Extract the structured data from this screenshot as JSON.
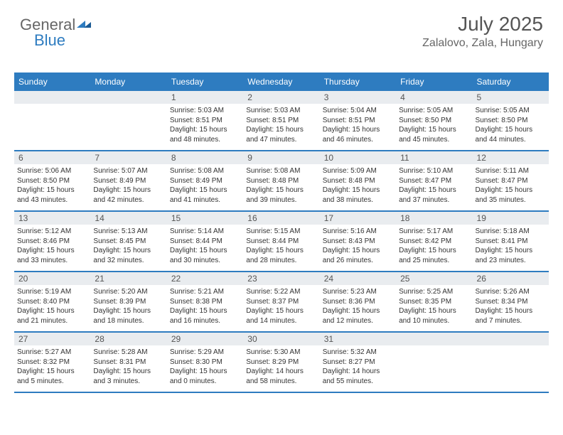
{
  "logo": {
    "text1": "General",
    "text2": "Blue"
  },
  "header": {
    "month": "July 2025",
    "location": "Zalalovo, Zala, Hungary"
  },
  "colors": {
    "accent": "#2e7cc0",
    "daynum_bg": "#e9ecef",
    "text": "#333333",
    "header_text": "#555555"
  },
  "weekdays": [
    "Sunday",
    "Monday",
    "Tuesday",
    "Wednesday",
    "Thursday",
    "Friday",
    "Saturday"
  ],
  "grid_rows": 5,
  "grid_cols": 7,
  "days": [
    null,
    null,
    {
      "n": "1",
      "sunrise": "Sunrise: 5:03 AM",
      "sunset": "Sunset: 8:51 PM",
      "day1": "Daylight: 15 hours",
      "day2": "and 48 minutes."
    },
    {
      "n": "2",
      "sunrise": "Sunrise: 5:03 AM",
      "sunset": "Sunset: 8:51 PM",
      "day1": "Daylight: 15 hours",
      "day2": "and 47 minutes."
    },
    {
      "n": "3",
      "sunrise": "Sunrise: 5:04 AM",
      "sunset": "Sunset: 8:51 PM",
      "day1": "Daylight: 15 hours",
      "day2": "and 46 minutes."
    },
    {
      "n": "4",
      "sunrise": "Sunrise: 5:05 AM",
      "sunset": "Sunset: 8:50 PM",
      "day1": "Daylight: 15 hours",
      "day2": "and 45 minutes."
    },
    {
      "n": "5",
      "sunrise": "Sunrise: 5:05 AM",
      "sunset": "Sunset: 8:50 PM",
      "day1": "Daylight: 15 hours",
      "day2": "and 44 minutes."
    },
    {
      "n": "6",
      "sunrise": "Sunrise: 5:06 AM",
      "sunset": "Sunset: 8:50 PM",
      "day1": "Daylight: 15 hours",
      "day2": "and 43 minutes."
    },
    {
      "n": "7",
      "sunrise": "Sunrise: 5:07 AM",
      "sunset": "Sunset: 8:49 PM",
      "day1": "Daylight: 15 hours",
      "day2": "and 42 minutes."
    },
    {
      "n": "8",
      "sunrise": "Sunrise: 5:08 AM",
      "sunset": "Sunset: 8:49 PM",
      "day1": "Daylight: 15 hours",
      "day2": "and 41 minutes."
    },
    {
      "n": "9",
      "sunrise": "Sunrise: 5:08 AM",
      "sunset": "Sunset: 8:48 PM",
      "day1": "Daylight: 15 hours",
      "day2": "and 39 minutes."
    },
    {
      "n": "10",
      "sunrise": "Sunrise: 5:09 AM",
      "sunset": "Sunset: 8:48 PM",
      "day1": "Daylight: 15 hours",
      "day2": "and 38 minutes."
    },
    {
      "n": "11",
      "sunrise": "Sunrise: 5:10 AM",
      "sunset": "Sunset: 8:47 PM",
      "day1": "Daylight: 15 hours",
      "day2": "and 37 minutes."
    },
    {
      "n": "12",
      "sunrise": "Sunrise: 5:11 AM",
      "sunset": "Sunset: 8:47 PM",
      "day1": "Daylight: 15 hours",
      "day2": "and 35 minutes."
    },
    {
      "n": "13",
      "sunrise": "Sunrise: 5:12 AM",
      "sunset": "Sunset: 8:46 PM",
      "day1": "Daylight: 15 hours",
      "day2": "and 33 minutes."
    },
    {
      "n": "14",
      "sunrise": "Sunrise: 5:13 AM",
      "sunset": "Sunset: 8:45 PM",
      "day1": "Daylight: 15 hours",
      "day2": "and 32 minutes."
    },
    {
      "n": "15",
      "sunrise": "Sunrise: 5:14 AM",
      "sunset": "Sunset: 8:44 PM",
      "day1": "Daylight: 15 hours",
      "day2": "and 30 minutes."
    },
    {
      "n": "16",
      "sunrise": "Sunrise: 5:15 AM",
      "sunset": "Sunset: 8:44 PM",
      "day1": "Daylight: 15 hours",
      "day2": "and 28 minutes."
    },
    {
      "n": "17",
      "sunrise": "Sunrise: 5:16 AM",
      "sunset": "Sunset: 8:43 PM",
      "day1": "Daylight: 15 hours",
      "day2": "and 26 minutes."
    },
    {
      "n": "18",
      "sunrise": "Sunrise: 5:17 AM",
      "sunset": "Sunset: 8:42 PM",
      "day1": "Daylight: 15 hours",
      "day2": "and 25 minutes."
    },
    {
      "n": "19",
      "sunrise": "Sunrise: 5:18 AM",
      "sunset": "Sunset: 8:41 PM",
      "day1": "Daylight: 15 hours",
      "day2": "and 23 minutes."
    },
    {
      "n": "20",
      "sunrise": "Sunrise: 5:19 AM",
      "sunset": "Sunset: 8:40 PM",
      "day1": "Daylight: 15 hours",
      "day2": "and 21 minutes."
    },
    {
      "n": "21",
      "sunrise": "Sunrise: 5:20 AM",
      "sunset": "Sunset: 8:39 PM",
      "day1": "Daylight: 15 hours",
      "day2": "and 18 minutes."
    },
    {
      "n": "22",
      "sunrise": "Sunrise: 5:21 AM",
      "sunset": "Sunset: 8:38 PM",
      "day1": "Daylight: 15 hours",
      "day2": "and 16 minutes."
    },
    {
      "n": "23",
      "sunrise": "Sunrise: 5:22 AM",
      "sunset": "Sunset: 8:37 PM",
      "day1": "Daylight: 15 hours",
      "day2": "and 14 minutes."
    },
    {
      "n": "24",
      "sunrise": "Sunrise: 5:23 AM",
      "sunset": "Sunset: 8:36 PM",
      "day1": "Daylight: 15 hours",
      "day2": "and 12 minutes."
    },
    {
      "n": "25",
      "sunrise": "Sunrise: 5:25 AM",
      "sunset": "Sunset: 8:35 PM",
      "day1": "Daylight: 15 hours",
      "day2": "and 10 minutes."
    },
    {
      "n": "26",
      "sunrise": "Sunrise: 5:26 AM",
      "sunset": "Sunset: 8:34 PM",
      "day1": "Daylight: 15 hours",
      "day2": "and 7 minutes."
    },
    {
      "n": "27",
      "sunrise": "Sunrise: 5:27 AM",
      "sunset": "Sunset: 8:32 PM",
      "day1": "Daylight: 15 hours",
      "day2": "and 5 minutes."
    },
    {
      "n": "28",
      "sunrise": "Sunrise: 5:28 AM",
      "sunset": "Sunset: 8:31 PM",
      "day1": "Daylight: 15 hours",
      "day2": "and 3 minutes."
    },
    {
      "n": "29",
      "sunrise": "Sunrise: 5:29 AM",
      "sunset": "Sunset: 8:30 PM",
      "day1": "Daylight: 15 hours",
      "day2": "and 0 minutes."
    },
    {
      "n": "30",
      "sunrise": "Sunrise: 5:30 AM",
      "sunset": "Sunset: 8:29 PM",
      "day1": "Daylight: 14 hours",
      "day2": "and 58 minutes."
    },
    {
      "n": "31",
      "sunrise": "Sunrise: 5:32 AM",
      "sunset": "Sunset: 8:27 PM",
      "day1": "Daylight: 14 hours",
      "day2": "and 55 minutes."
    },
    null,
    null
  ]
}
